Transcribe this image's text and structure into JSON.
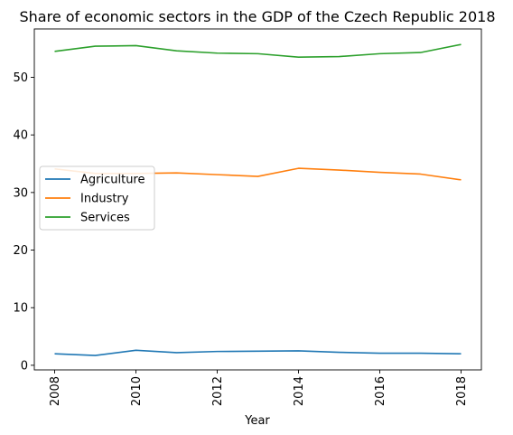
{
  "chart_data": {
    "type": "line",
    "title": "Share of economic sectors in the GDP of the Czech Republic 2018",
    "xlabel": "Year",
    "ylabel": "",
    "x": [
      2008,
      2009,
      2010,
      2011,
      2012,
      2013,
      2014,
      2015,
      2016,
      2017,
      2018
    ],
    "xlim": [
      2007.5,
      2018.5
    ],
    "ylim": [
      -0.8,
      58.4
    ],
    "xticks": [
      "2008",
      "2010",
      "2012",
      "2014",
      "2016",
      "2018"
    ],
    "yticks": [
      "0",
      "10",
      "20",
      "30",
      "40",
      "50"
    ],
    "series": [
      {
        "name": "Agriculture",
        "color": "#1f77b4",
        "values": [
          2.0,
          1.7,
          2.6,
          2.2,
          2.4,
          2.45,
          2.5,
          2.25,
          2.1,
          2.1,
          2.0
        ]
      },
      {
        "name": "Industry",
        "color": "#ff7f0e",
        "values": [
          34.1,
          33.3,
          33.3,
          33.4,
          33.1,
          32.8,
          34.2,
          33.9,
          33.5,
          33.2,
          32.2
        ]
      },
      {
        "name": "Services",
        "color": "#2ca02c",
        "values": [
          54.5,
          55.4,
          55.5,
          54.6,
          54.2,
          54.1,
          53.5,
          53.6,
          54.1,
          54.3,
          55.7
        ]
      }
    ],
    "grid": false,
    "legend_position": "center-left"
  }
}
